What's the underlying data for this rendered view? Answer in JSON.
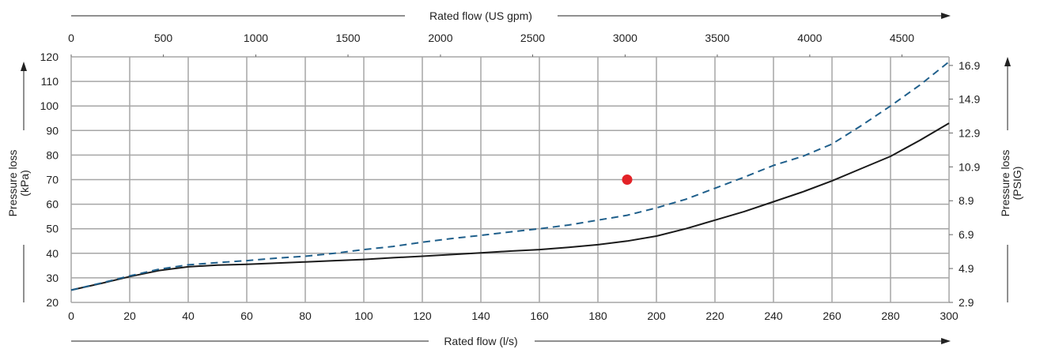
{
  "chart_data": {
    "type": "line",
    "x_label": "Rated flow (l/s)",
    "x2_label": "Rated flow (US gpm)",
    "y_label": "Pressure loss\n(kPa)",
    "y2_label": "Pressure loss\n(PSIG)",
    "xlim": [
      0,
      300
    ],
    "ylim": [
      20,
      120
    ],
    "x_ticks": [
      0,
      20,
      40,
      60,
      80,
      100,
      120,
      140,
      160,
      180,
      200,
      220,
      240,
      260,
      280,
      300
    ],
    "y_ticks": [
      20,
      30,
      40,
      50,
      60,
      70,
      80,
      90,
      100,
      110,
      120
    ],
    "x2_ticks": [
      {
        "label": "0",
        "x": 0
      },
      {
        "label": "500",
        "x": 31.5
      },
      {
        "label": "1000",
        "x": 63.1
      },
      {
        "label": "1500",
        "x": 94.6
      },
      {
        "label": "2000",
        "x": 126.2
      },
      {
        "label": "2500",
        "x": 157.7
      },
      {
        "label": "3000",
        "x": 189.3
      },
      {
        "label": "3500",
        "x": 220.8
      },
      {
        "label": "4000",
        "x": 252.4
      },
      {
        "label": "4500",
        "x": 283.9
      }
    ],
    "y2_ticks": [
      {
        "label": "2.9",
        "y": 20
      },
      {
        "label": "4.9",
        "y": 33.8
      },
      {
        "label": "6.9",
        "y": 47.6
      },
      {
        "label": "8.9",
        "y": 61.4
      },
      {
        "label": "10.9",
        "y": 75.2
      },
      {
        "label": "12.9",
        "y": 89.0
      },
      {
        "label": "14.9",
        "y": 102.8
      },
      {
        "label": "16.9",
        "y": 116.5
      }
    ],
    "grid": true,
    "series": [
      {
        "style": "solid",
        "color": "#1a1a1a",
        "x": [
          0,
          10,
          20,
          30,
          40,
          50,
          60,
          70,
          80,
          90,
          100,
          110,
          120,
          130,
          140,
          150,
          160,
          170,
          180,
          190,
          200,
          210,
          220,
          230,
          240,
          250,
          260,
          270,
          280,
          290,
          300
        ],
        "y": [
          25,
          27.7,
          30.5,
          33,
          34.5,
          35.2,
          35.5,
          36,
          36.5,
          37,
          37.5,
          38.2,
          38.8,
          39.5,
          40.2,
          40.9,
          41.5,
          42.4,
          43.5,
          45,
          47,
          50,
          53.5,
          57,
          61,
          65,
          69.5,
          74.5,
          79.5,
          86,
          93
        ]
      },
      {
        "style": "dashed",
        "color": "#1f5f8b",
        "x": [
          0,
          10,
          20,
          30,
          40,
          50,
          60,
          70,
          80,
          90,
          100,
          110,
          120,
          130,
          140,
          150,
          160,
          170,
          180,
          190,
          200,
          210,
          220,
          230,
          240,
          250,
          260,
          270,
          280,
          290,
          300
        ],
        "y": [
          25,
          27.8,
          30.8,
          33.5,
          35.3,
          36.2,
          37,
          38,
          38.8,
          40,
          41.5,
          42.8,
          44.5,
          46,
          47.3,
          48.7,
          50,
          51.5,
          53.5,
          55.5,
          58.5,
          62,
          66.5,
          71,
          75.8,
          79.5,
          84.5,
          92,
          100,
          108.5,
          118
        ]
      }
    ],
    "points": [
      {
        "x": 190,
        "y": 70,
        "color": "#e32227"
      }
    ]
  }
}
